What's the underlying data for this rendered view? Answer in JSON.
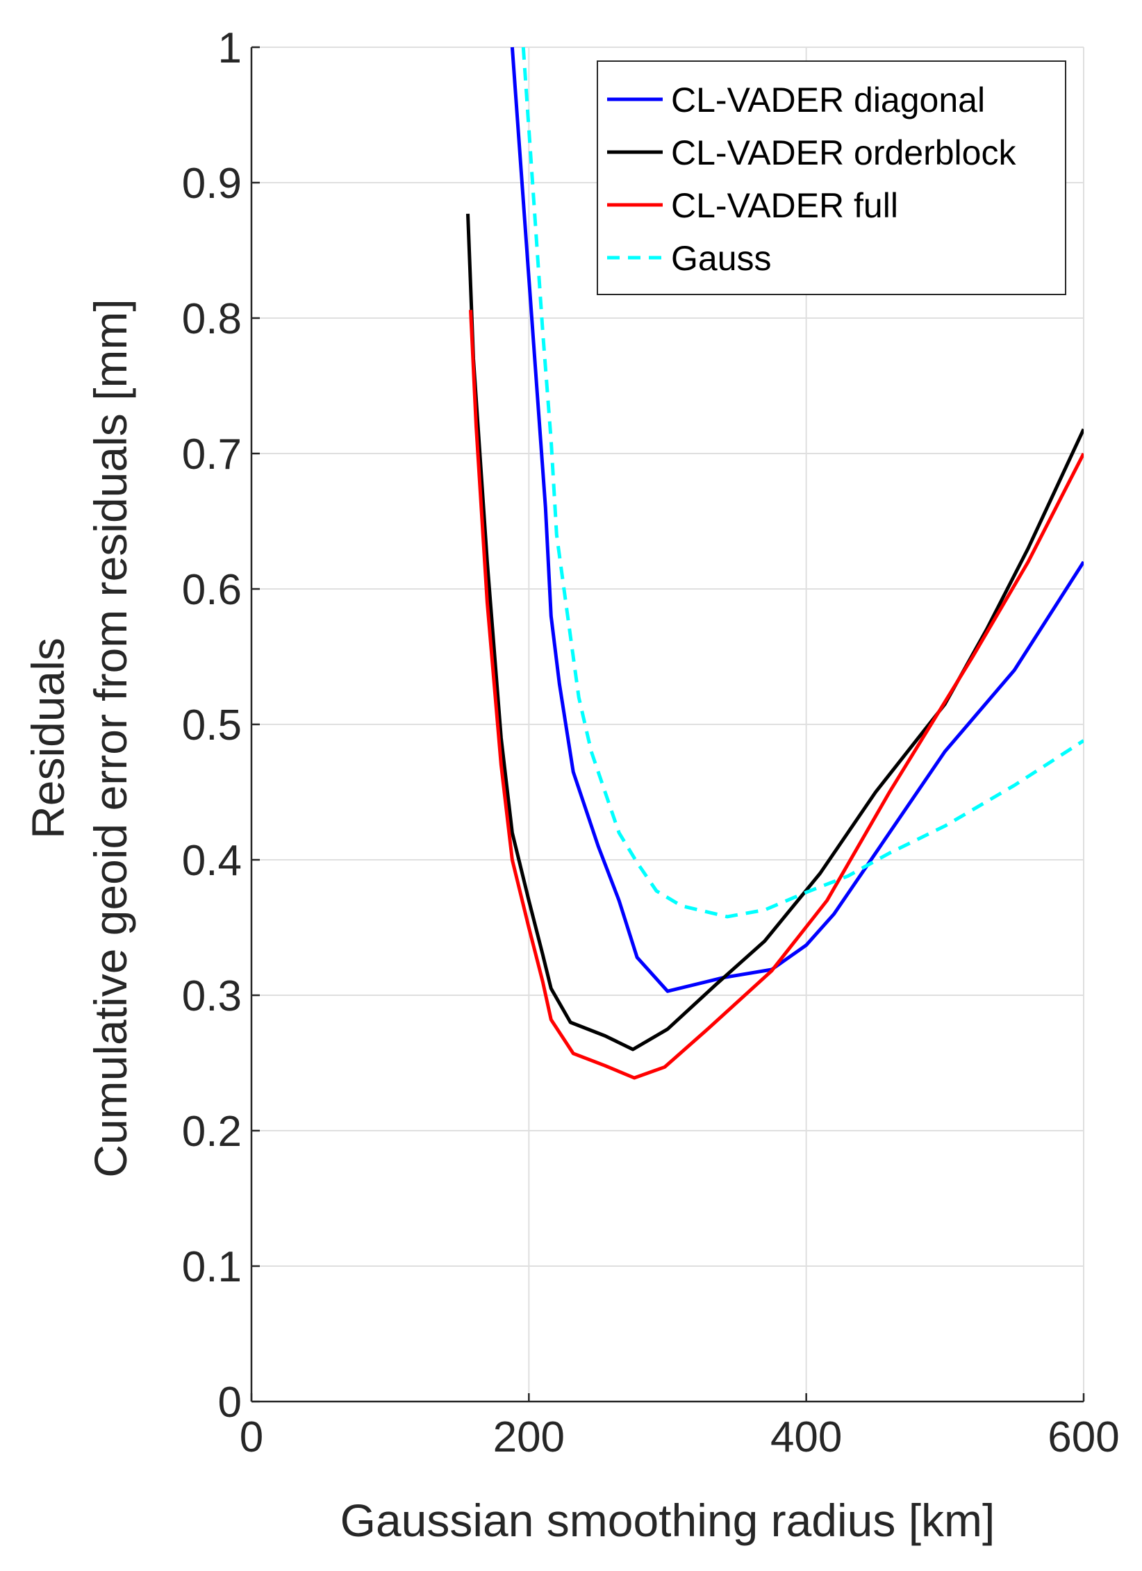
{
  "chart_data": {
    "type": "line",
    "xlabel": "Gaussian smoothing radius [km]",
    "ylabel_lines": [
      "Residuals",
      "Cumulative geoid error from residuals [mm]"
    ],
    "xlim": [
      0,
      600
    ],
    "ylim": [
      0,
      1
    ],
    "grid": true,
    "legend_position": "top-right",
    "x_ticks": [
      {
        "value": 0,
        "label": "0"
      },
      {
        "value": 200,
        "label": "200"
      },
      {
        "value": 400,
        "label": "400"
      },
      {
        "value": 600,
        "label": "600"
      }
    ],
    "y_ticks": [
      {
        "value": 0,
        "label": "0"
      },
      {
        "value": 0.1,
        "label": "0.1"
      },
      {
        "value": 0.2,
        "label": "0.2"
      },
      {
        "value": 0.3,
        "label": "0.3"
      },
      {
        "value": 0.4,
        "label": "0.4"
      },
      {
        "value": 0.5,
        "label": "0.5"
      },
      {
        "value": 0.6,
        "label": "0.6"
      },
      {
        "value": 0.7,
        "label": "0.7"
      },
      {
        "value": 0.8,
        "label": "0.8"
      },
      {
        "value": 0.9,
        "label": "0.9"
      },
      {
        "value": 1,
        "label": "1"
      }
    ],
    "series": [
      {
        "name": "CL-VADER diagonal",
        "color": "#0000ff",
        "dash": "solid",
        "points": [
          [
            188,
            1.0
          ],
          [
            200,
            0.83
          ],
          [
            212,
            0.66
          ],
          [
            216,
            0.58
          ],
          [
            222,
            0.53
          ],
          [
            232,
            0.465
          ],
          [
            250,
            0.41
          ],
          [
            265,
            0.37
          ],
          [
            278,
            0.328
          ],
          [
            300,
            0.303
          ],
          [
            340,
            0.313
          ],
          [
            375,
            0.319
          ],
          [
            400,
            0.337
          ],
          [
            420,
            0.36
          ],
          [
            450,
            0.405
          ],
          [
            500,
            0.48
          ],
          [
            550,
            0.54
          ],
          [
            600,
            0.62
          ]
        ]
      },
      {
        "name": "CL-VADER orderblock",
        "color": "#000000",
        "dash": "solid",
        "points": [
          [
            156,
            0.877
          ],
          [
            160,
            0.77
          ],
          [
            170,
            0.62
          ],
          [
            180,
            0.49
          ],
          [
            188,
            0.42
          ],
          [
            200,
            0.37
          ],
          [
            210,
            0.33
          ],
          [
            216,
            0.305
          ],
          [
            230,
            0.28
          ],
          [
            255,
            0.27
          ],
          [
            275,
            0.26
          ],
          [
            300,
            0.275
          ],
          [
            335,
            0.308
          ],
          [
            370,
            0.34
          ],
          [
            410,
            0.39
          ],
          [
            450,
            0.45
          ],
          [
            500,
            0.515
          ],
          [
            530,
            0.57
          ],
          [
            560,
            0.63
          ],
          [
            600,
            0.718
          ]
        ]
      },
      {
        "name": "CL-VADER full",
        "color": "#ff0000",
        "dash": "solid",
        "points": [
          [
            158,
            0.806
          ],
          [
            162,
            0.72
          ],
          [
            170,
            0.59
          ],
          [
            180,
            0.47
          ],
          [
            188,
            0.4
          ],
          [
            200,
            0.35
          ],
          [
            210,
            0.31
          ],
          [
            216,
            0.282
          ],
          [
            232,
            0.257
          ],
          [
            255,
            0.248
          ],
          [
            276,
            0.239
          ],
          [
            298,
            0.247
          ],
          [
            330,
            0.276
          ],
          [
            375,
            0.318
          ],
          [
            415,
            0.37
          ],
          [
            460,
            0.45
          ],
          [
            520,
            0.55
          ],
          [
            560,
            0.62
          ],
          [
            600,
            0.7
          ]
        ]
      },
      {
        "name": "Gauss",
        "color": "#00ffff",
        "dash": "dashed",
        "points": [
          [
            196,
            1.0
          ],
          [
            202,
            0.91
          ],
          [
            210,
            0.79
          ],
          [
            216,
            0.71
          ],
          [
            220,
            0.64
          ],
          [
            228,
            0.58
          ],
          [
            236,
            0.52
          ],
          [
            245,
            0.48
          ],
          [
            255,
            0.45
          ],
          [
            265,
            0.42
          ],
          [
            278,
            0.398
          ],
          [
            292,
            0.377
          ],
          [
            310,
            0.366
          ],
          [
            343,
            0.358
          ],
          [
            370,
            0.363
          ],
          [
            400,
            0.376
          ],
          [
            430,
            0.388
          ],
          [
            460,
            0.405
          ],
          [
            500,
            0.425
          ],
          [
            550,
            0.455
          ],
          [
            600,
            0.488
          ]
        ]
      }
    ]
  }
}
